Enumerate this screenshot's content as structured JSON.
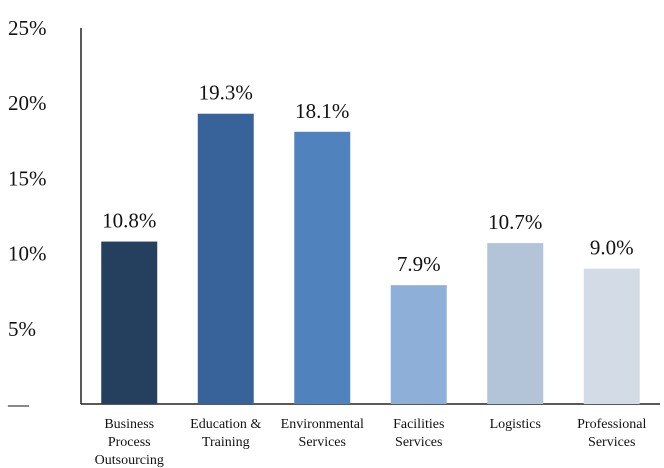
{
  "chart_data": {
    "type": "bar",
    "title": "",
    "xlabel": "",
    "ylabel": "",
    "categories": [
      [
        "Business",
        "Process",
        "Outsourcing"
      ],
      [
        "Education &",
        "Training"
      ],
      [
        "Environmental",
        "Services"
      ],
      [
        "Facilities",
        "Services"
      ],
      [
        "Logistics"
      ],
      [
        "Professional",
        "Services"
      ]
    ],
    "values": [
      10.8,
      19.3,
      18.1,
      7.9,
      10.7,
      9.0
    ],
    "value_labels": [
      "10.8%",
      "19.3%",
      "18.1%",
      "7.9%",
      "10.7%",
      "9.0%"
    ],
    "bar_colors": [
      "#253f5f",
      "#37629a",
      "#5082bd",
      "#8eb0d8",
      "#b4c4d8",
      "#d2dbe6"
    ],
    "ylim": [
      0,
      25
    ],
    "yticks": [
      {
        "value": 0,
        "label": "—"
      },
      {
        "value": 5,
        "label": "5%"
      },
      {
        "value": 10,
        "label": "10%"
      },
      {
        "value": 15,
        "label": "15%"
      },
      {
        "value": 20,
        "label": "20%"
      },
      {
        "value": 25,
        "label": "25%"
      }
    ],
    "grid": false,
    "legend": "none"
  }
}
